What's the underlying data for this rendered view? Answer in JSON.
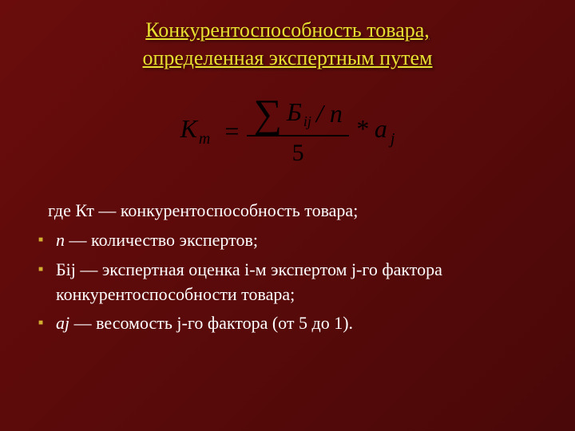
{
  "title_color": "#e8e030",
  "bullet_color": "#d4b030",
  "text_color": "#ffffff",
  "formula_color": "#000000",
  "title_line1": "Конкурентоспособность товара,",
  "title_line2": "определенная экспертным путем",
  "formula": {
    "lhs_var": "К",
    "lhs_sub": "т",
    "numerator_var": "Б",
    "numerator_sub": "ij",
    "numerator_div": "/ n",
    "denominator": "5",
    "tail_var": "* a",
    "tail_sub": "j"
  },
  "legend": {
    "intro": "где Кт — конкурентоспособность товара;",
    "items": [
      {
        "sym": "n",
        "italic": true,
        "rest": " — количество экспертов;"
      },
      {
        "sym": "Біј",
        "italic": false,
        "rest": " — экспертная оценка і-м экспертом ј-го фактора конкурентоспособности товара;"
      },
      {
        "sym": "aj",
        "italic": true,
        "rest": " — весомость ј-го фактора (от 5 до 1)."
      }
    ]
  }
}
